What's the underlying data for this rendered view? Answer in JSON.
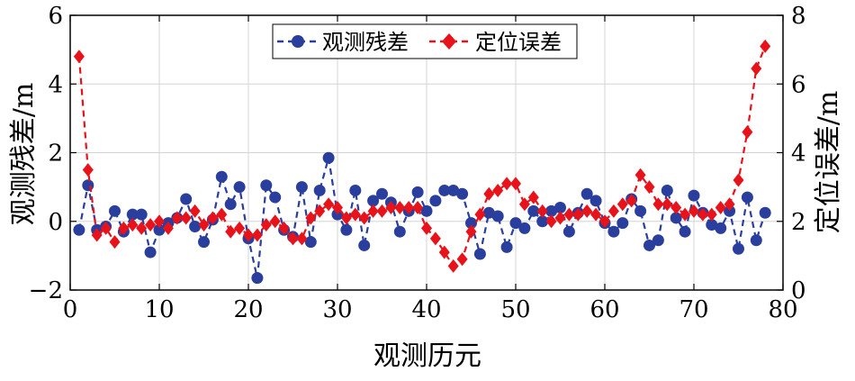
{
  "chart_data": {
    "type": "line",
    "xlabel": "观测历元",
    "ylabel_left": "观测残差/m",
    "ylabel_right": "定位误差/m",
    "xlim": [
      0,
      80
    ],
    "ylim_left": [
      -2,
      6
    ],
    "ylim_right": [
      0,
      8
    ],
    "x_ticks": [
      0,
      10,
      20,
      30,
      40,
      50,
      60,
      70,
      80
    ],
    "x_tick_labels": [
      "0",
      "10",
      "20",
      "30",
      "40",
      "50",
      "60",
      "70",
      "80"
    ],
    "y_left_ticks": [
      -2,
      0,
      2,
      4,
      6
    ],
    "y_left_tick_labels": [
      "−2",
      "0",
      "2",
      "4",
      "6"
    ],
    "y_right_ticks": [
      0,
      2,
      4,
      6,
      8
    ],
    "y_right_tick_labels": [
      "0",
      "2",
      "4",
      "6",
      "8"
    ],
    "grid": true,
    "legend_position": "top-center",
    "series": [
      {
        "name": "观测残差",
        "axis": "left",
        "color": "#2a3f9d",
        "marker": "circle",
        "line_style": "dashed",
        "x": [
          1,
          2,
          3,
          4,
          5,
          6,
          7,
          8,
          9,
          10,
          11,
          12,
          13,
          14,
          15,
          16,
          17,
          18,
          19,
          20,
          21,
          22,
          23,
          24,
          25,
          26,
          27,
          28,
          29,
          30,
          31,
          32,
          33,
          34,
          35,
          36,
          37,
          38,
          39,
          40,
          41,
          42,
          43,
          44,
          45,
          46,
          47,
          48,
          49,
          50,
          51,
          52,
          53,
          54,
          55,
          56,
          57,
          58,
          59,
          60,
          61,
          62,
          63,
          64,
          65,
          66,
          67,
          68,
          69,
          70,
          71,
          72,
          73,
          74,
          75,
          76,
          77,
          78
        ],
        "values": [
          -0.25,
          1.05,
          -0.25,
          -0.15,
          0.3,
          -0.3,
          0.2,
          0.2,
          -0.9,
          -0.25,
          -0.05,
          0.1,
          0.65,
          -0.15,
          -0.6,
          0.05,
          1.3,
          0.5,
          1.0,
          -0.5,
          -1.65,
          1.05,
          0.7,
          -0.25,
          -0.45,
          1.0,
          -0.6,
          0.9,
          1.85,
          0.2,
          -0.25,
          0.9,
          -0.7,
          0.6,
          0.8,
          0.55,
          -0.3,
          0.3,
          0.85,
          0.3,
          0.6,
          0.9,
          0.9,
          0.8,
          -0.05,
          -0.95,
          0.25,
          0.15,
          -0.75,
          -0.05,
          -0.2,
          0.3,
          0.0,
          0.3,
          0.4,
          -0.3,
          0.25,
          0.8,
          0.6,
          -0.05,
          -0.3,
          -0.05,
          0.65,
          0.3,
          -0.7,
          -0.55,
          0.9,
          0.1,
          -0.3,
          0.75,
          0.25,
          -0.1,
          -0.2,
          0.3,
          -0.8,
          0.7,
          -0.55,
          0.25
        ]
      },
      {
        "name": "定位误差",
        "axis": "right",
        "color": "#e8121b",
        "marker": "diamond",
        "line_style": "dashed",
        "x": [
          1,
          2,
          3,
          4,
          5,
          6,
          7,
          8,
          9,
          10,
          11,
          12,
          13,
          14,
          15,
          16,
          17,
          18,
          19,
          20,
          21,
          22,
          23,
          24,
          25,
          26,
          27,
          28,
          29,
          30,
          31,
          32,
          33,
          34,
          35,
          36,
          37,
          38,
          39,
          40,
          41,
          42,
          43,
          44,
          45,
          46,
          47,
          48,
          49,
          50,
          51,
          52,
          53,
          54,
          55,
          56,
          57,
          58,
          59,
          60,
          61,
          62,
          63,
          64,
          65,
          66,
          67,
          68,
          69,
          70,
          71,
          72,
          73,
          74,
          75,
          76,
          77,
          78
        ],
        "values": [
          6.8,
          3.5,
          1.6,
          1.8,
          1.4,
          1.8,
          1.9,
          1.8,
          1.9,
          2.0,
          1.8,
          2.1,
          2.1,
          2.3,
          1.9,
          2.1,
          2.2,
          1.7,
          1.8,
          1.6,
          1.6,
          1.9,
          2.0,
          1.8,
          1.5,
          1.5,
          2.1,
          2.3,
          2.5,
          2.4,
          2.1,
          2.2,
          2.1,
          2.3,
          2.3,
          2.4,
          2.4,
          2.4,
          2.4,
          1.8,
          1.5,
          1.1,
          0.7,
          0.9,
          1.7,
          2.2,
          2.8,
          2.9,
          3.1,
          3.1,
          2.5,
          2.7,
          2.3,
          2.0,
          2.1,
          2.2,
          2.2,
          2.3,
          2.2,
          2.0,
          2.3,
          2.5,
          2.6,
          3.35,
          3.0,
          2.5,
          2.5,
          2.4,
          2.2,
          2.3,
          2.2,
          2.2,
          2.4,
          2.5,
          3.2,
          4.6,
          6.45,
          7.1
        ]
      }
    ]
  }
}
